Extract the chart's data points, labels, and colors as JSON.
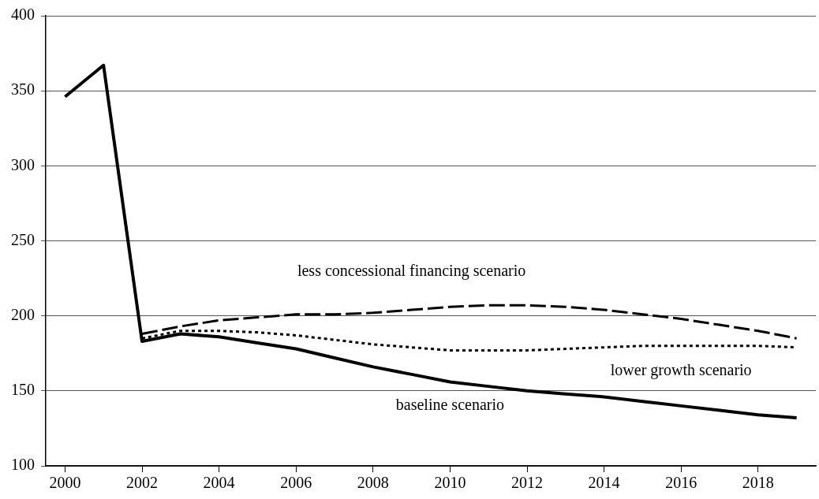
{
  "chart_data": {
    "type": "line",
    "x": [
      2000,
      2001,
      2002,
      2003,
      2004,
      2005,
      2006,
      2007,
      2008,
      2009,
      2010,
      2011,
      2012,
      2013,
      2014,
      2015,
      2016,
      2017,
      2018,
      2019
    ],
    "series": [
      {
        "name": "baseline scenario",
        "color": "#000000",
        "line_style": "solid",
        "values": [
          346,
          367,
          183,
          188,
          186,
          182,
          178,
          172,
          166,
          161,
          156,
          153,
          150,
          148,
          146,
          143,
          140,
          137,
          134,
          132
        ]
      },
      {
        "name": "lower growth scenario",
        "color": "#000000",
        "line_style": "dotted",
        "values": [
          null,
          null,
          185,
          190,
          190,
          189,
          187,
          184,
          181,
          179,
          177,
          177,
          177,
          178,
          179,
          180,
          180,
          180,
          180,
          179
        ]
      },
      {
        "name": "less concessional financing scenario",
        "color": "#000000",
        "line_style": "dashed",
        "values": [
          null,
          null,
          188,
          193,
          197,
          199,
          201,
          201,
          202,
          204,
          206,
          207,
          207,
          206,
          204,
          201,
          198,
          194,
          190,
          185
        ]
      }
    ],
    "xlim": [
      1999.5,
      2019.5
    ],
    "xticks": [
      2000,
      2002,
      2004,
      2006,
      2008,
      2010,
      2012,
      2014,
      2016,
      2018
    ],
    "ylim": [
      100,
      400
    ],
    "yticks": [
      100,
      150,
      200,
      250,
      300,
      350,
      400
    ],
    "grid": "y",
    "legend": false,
    "marker": "none"
  }
}
